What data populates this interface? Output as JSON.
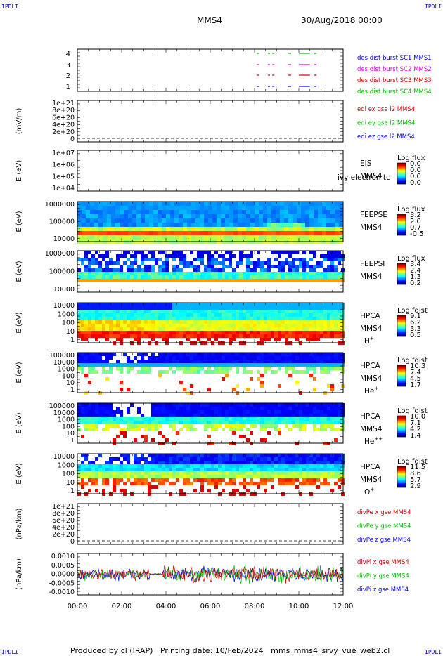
{
  "corner_labels": {
    "tl": "IPDLI",
    "tr": "IPDLI",
    "bl": "IPDLI",
    "br": "IPDLI"
  },
  "header": {
    "spacecraft": "MMS4",
    "datetime": "30/Aug/2018 00:00"
  },
  "footer": {
    "text": "Produced by cl (IRAP)   Printing date: 10/Feb/2024   mms_mms4_srvy_vue_web2.cl"
  },
  "x_axis": {
    "ticks": [
      "00:00",
      "02:00",
      "04:00",
      "06:00",
      "08:00",
      "10:00",
      "12:00"
    ],
    "range_hours": [
      0,
      12
    ]
  },
  "colors": {
    "blue": "#0000ee",
    "magenta": "#dd00dd",
    "red": "#cc0000",
    "green": "#00bb00"
  },
  "chart_data": [
    {
      "type": "scatter",
      "id": "burst",
      "ylabel": "",
      "ylim": [
        0.5,
        4.5
      ],
      "yticks": [
        "4",
        "3",
        "2",
        "1"
      ],
      "legend": [
        {
          "label": "des dist burst SC1 MMS1",
          "color": "blue"
        },
        {
          "label": "des dist burst SC2 MMS2",
          "color": "magenta"
        },
        {
          "label": "des dist burst SC3 MMS3",
          "color": "red"
        },
        {
          "label": "des dist burst SC4 MMS4",
          "color": "green"
        }
      ],
      "intervals_hours": [
        [
          8.1,
          8.2
        ],
        [
          8.6,
          8.7
        ],
        [
          8.8,
          8.9
        ],
        [
          9.5,
          9.65
        ],
        [
          10.0,
          10.5
        ],
        [
          10.7,
          10.8
        ]
      ]
    },
    {
      "type": "line",
      "id": "edi",
      "ylabel": "(mV/m)",
      "yticks": [
        "1e+21",
        "8e+20",
        "6e+20",
        "4e+20",
        "2e+20",
        "0"
      ],
      "legend": [
        {
          "label": "edi ex gse l2 MMS4",
          "color": "red"
        },
        {
          "label": "edi ey gse l2 MMS4",
          "color": "green"
        },
        {
          "label": "edi ez gse l2 MMS4",
          "color": "blue"
        }
      ]
    },
    {
      "type": "heatmap",
      "id": "eis",
      "ylabel": "E (eV)",
      "yticks": [
        "1e+07",
        "1e+06",
        "1e+05",
        "1e+04"
      ],
      "instrument": [
        "EIS",
        "MMS4"
      ],
      "overlay_text": "ivy electron tc",
      "colorbar": {
        "title": "Log flux",
        "ticks": [
          "0.0",
          "0.0",
          "0.0",
          "0.0"
        ]
      }
    },
    {
      "type": "heatmap",
      "id": "feepse",
      "ylabel": "E (eV)",
      "yticks": [
        "1000000",
        "100000",
        "10000"
      ],
      "instrument": [
        "FEEPSE",
        "MMS4"
      ],
      "colorbar": {
        "title": "Log flux",
        "ticks": [
          "3.2",
          "2.0",
          "0.7",
          "-0.5"
        ]
      }
    },
    {
      "type": "heatmap",
      "id": "feepsi",
      "ylabel": "E (eV)",
      "yticks": [
        "1000000",
        "100000",
        "10000"
      ],
      "instrument": [
        "FEEPSI",
        "MMS4"
      ],
      "colorbar": {
        "title": "Log flux",
        "ticks": [
          "3.4",
          "2.4",
          "1.3",
          "0.2"
        ]
      }
    },
    {
      "type": "heatmap",
      "id": "hpca_h",
      "ylabel": "E (eV)",
      "yticks": [
        "10000",
        "1000",
        "100",
        "10",
        "1"
      ],
      "instrument": [
        "HPCA",
        "MMS4",
        "H",
        "+"
      ],
      "colorbar": {
        "title": "Log fdist",
        "ticks": [
          "9.1",
          "6.2",
          "3.3",
          "0.5"
        ]
      }
    },
    {
      "type": "heatmap",
      "id": "hpca_he1",
      "ylabel": "E (eV)",
      "yticks": [
        "100000",
        "10000",
        "1000",
        "100",
        "10",
        "1"
      ],
      "instrument": [
        "HPCA",
        "MMS4",
        "He",
        "+"
      ],
      "colorbar": {
        "title": "Log fdist",
        "ticks": [
          "10.3",
          "7.4",
          "4.5",
          "1.7"
        ]
      }
    },
    {
      "type": "heatmap",
      "id": "hpca_he2",
      "ylabel": "E (eV)",
      "yticks": [
        "100000",
        "10000",
        "1000",
        "100",
        "10",
        "1"
      ],
      "instrument": [
        "HPCA",
        "MMS4",
        "He",
        "++"
      ],
      "colorbar": {
        "title": "Log fdist",
        "ticks": [
          "10.0",
          "7.1",
          "4.2",
          "1.4"
        ]
      }
    },
    {
      "type": "heatmap",
      "id": "hpca_o",
      "ylabel": "E (eV)",
      "yticks": [
        "10000",
        "1000",
        "100",
        "10",
        "1"
      ],
      "instrument": [
        "HPCA",
        "MMS4",
        "O",
        "+"
      ],
      "colorbar": {
        "title": "Log fdist",
        "ticks": [
          "11.5",
          "8.6",
          "5.7",
          "2.9"
        ]
      }
    },
    {
      "type": "line",
      "id": "divpe",
      "ylabel": "(nPa/km)",
      "yticks": [
        "1e+21",
        "8e+20",
        "6e+20",
        "4e+20",
        "2e+20",
        "0"
      ],
      "legend": [
        {
          "label": "divPe x gse MMS4",
          "color": "red"
        },
        {
          "label": "divPe y gse MMS4",
          "color": "green"
        },
        {
          "label": "divPe z gse MMS4",
          "color": "blue"
        }
      ]
    },
    {
      "type": "line",
      "id": "divpi",
      "ylabel": "(nPa/km)",
      "yticks": [
        "0.0010",
        "0.0005",
        "0.0000",
        "-0.0005",
        "-0.0010"
      ],
      "ylim": [
        -0.0012,
        0.0012
      ],
      "legend": [
        {
          "label": "divPi x gse MMS4",
          "color": "red"
        },
        {
          "label": "divPi y gse MMS4",
          "color": "green"
        },
        {
          "label": "divPi z gse MMS4",
          "color": "blue"
        }
      ]
    }
  ]
}
